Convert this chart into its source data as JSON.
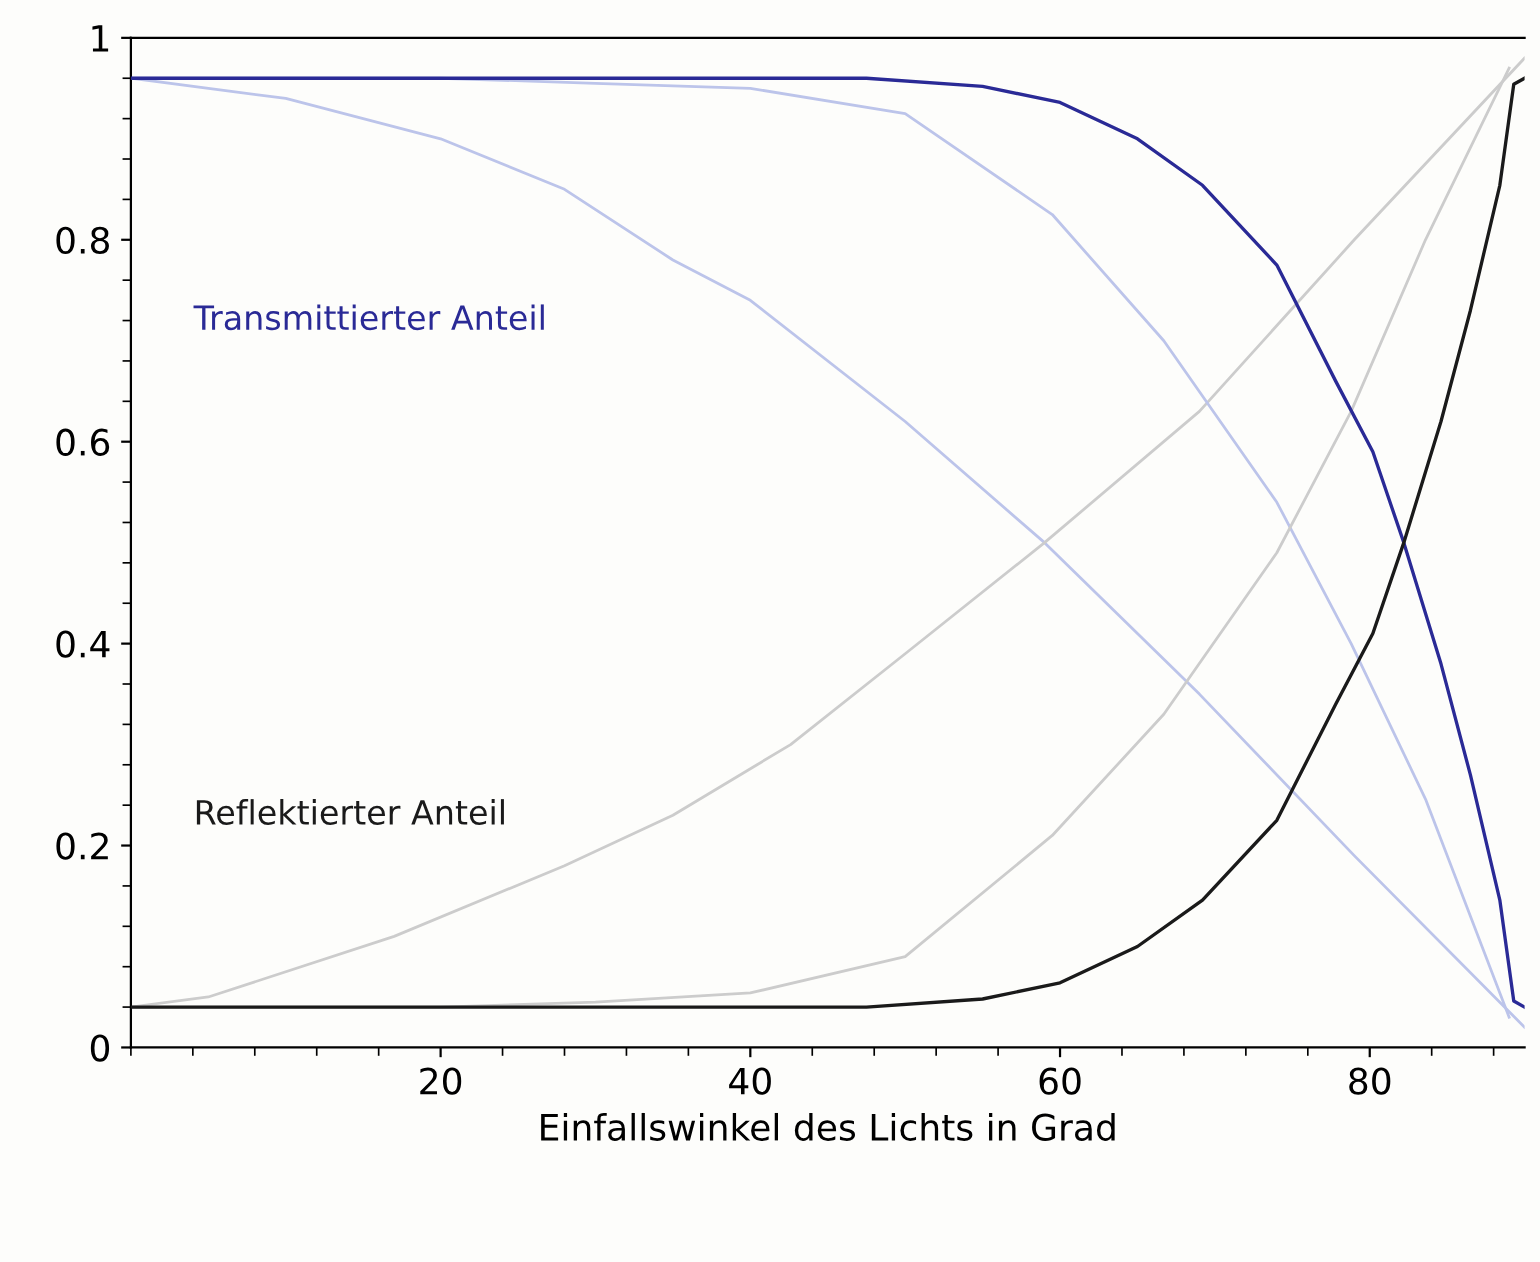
{
  "chart_data": {
    "type": "line",
    "xlabel": "Einfallswinkel des Lichts in Grad",
    "xlim": [
      0,
      90
    ],
    "ylim": [
      0,
      1
    ],
    "xticks": [
      20,
      40,
      60,
      80
    ],
    "yticks": [
      0,
      0.2,
      0.4,
      0.6,
      0.8,
      1
    ],
    "grid": false,
    "legend": false,
    "marker": "none",
    "line_style": "solid",
    "series": [
      {
        "name": "Transmittierter Anteil",
        "color": "#2a2a96",
        "x": [
          0,
          20,
          40,
          47.5,
          55,
          60,
          65,
          69.2,
          74,
          77.8,
          80.2,
          82.2,
          84.6,
          86.5,
          88.4,
          89.3,
          90
        ],
        "values": [
          0.96,
          0.96,
          0.96,
          0.96,
          0.952,
          0.936,
          0.9,
          0.854,
          0.775,
          0.66,
          0.59,
          0.5,
          0.38,
          0.27,
          0.146,
          0.046,
          0.04
        ]
      },
      {
        "name": "Reflektierter Anteil",
        "color": "#1a1a1a",
        "x": [
          0,
          20,
          40,
          47.5,
          55,
          60,
          65,
          69.2,
          74,
          77.8,
          80.2,
          82.2,
          84.6,
          86.5,
          88.4,
          89.3,
          90
        ],
        "values": [
          0.04,
          0.04,
          0.04,
          0.04,
          0.048,
          0.064,
          0.1,
          0.146,
          0.225,
          0.34,
          0.41,
          0.5,
          0.62,
          0.73,
          0.854,
          0.954,
          0.96
        ]
      },
      {
        "color": "#bcc4ea",
        "x": [
          0,
          10,
          20,
          28,
          35,
          40,
          50,
          59,
          69,
          79,
          90
        ],
        "values": [
          0.96,
          0.94,
          0.9,
          0.85,
          0.78,
          0.74,
          0.62,
          0.5,
          0.35,
          0.19,
          0.02
        ]
      },
      {
        "color": "#cccccc",
        "x": [
          0,
          5,
          17,
          28,
          35,
          42.6,
          50,
          59,
          69,
          79,
          90
        ],
        "values": [
          0.04,
          0.05,
          0.11,
          0.18,
          0.23,
          0.3,
          0.39,
          0.5,
          0.63,
          0.8,
          0.98
        ]
      },
      {
        "color": "#bcc4ea",
        "x": [
          0,
          20,
          30,
          40,
          50,
          59.5,
          66.7,
          74,
          78.8,
          83.6,
          89
        ],
        "values": [
          0.96,
          0.96,
          0.955,
          0.95,
          0.925,
          0.825,
          0.7,
          0.54,
          0.4,
          0.246,
          0.03
        ]
      },
      {
        "color": "#cccccc",
        "x": [
          0,
          20,
          30,
          40,
          50,
          59.5,
          66.7,
          74,
          78.8,
          83.6,
          89
        ],
        "values": [
          0.04,
          0.04,
          0.045,
          0.054,
          0.09,
          0.21,
          0.33,
          0.49,
          0.63,
          0.8,
          0.97
        ]
      }
    ]
  }
}
